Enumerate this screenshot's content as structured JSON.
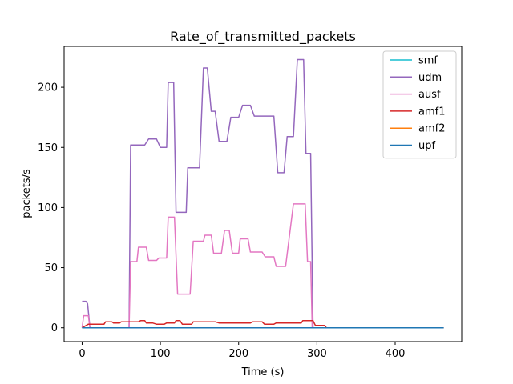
{
  "chart_data": {
    "type": "line",
    "title": "Rate_of_transmitted_packets",
    "xlabel": "Time (s)",
    "ylabel": "packets/s",
    "xlim": [
      -23,
      485
    ],
    "ylim": [
      -11.5,
      234
    ],
    "xticks": [
      0,
      100,
      200,
      300,
      400
    ],
    "yticks": [
      0,
      50,
      100,
      150,
      200
    ],
    "grid": false,
    "legend_position": "top-right",
    "series": [
      {
        "name": "smf",
        "color": "#17becf",
        "x": [
          0,
          462
        ],
        "y": [
          0,
          0
        ]
      },
      {
        "name": "udm",
        "color": "#9467bd",
        "x": [
          0,
          5,
          7,
          10,
          60,
          62,
          65,
          80,
          85,
          95,
          100,
          108,
          110,
          117,
          120,
          133,
          135,
          150,
          155,
          160,
          165,
          170,
          175,
          185,
          190,
          200,
          205,
          215,
          220,
          230,
          235,
          245,
          250,
          258,
          262,
          270,
          275,
          283,
          286,
          292,
          295,
          300,
          462
        ],
        "y": [
          22,
          22,
          20,
          0,
          0,
          152,
          152,
          152,
          157,
          157,
          150,
          150,
          204,
          204,
          96,
          96,
          133,
          133,
          216,
          216,
          180,
          180,
          155,
          155,
          175,
          175,
          185,
          185,
          176,
          176,
          176,
          176,
          129,
          129,
          159,
          159,
          223,
          223,
          145,
          145,
          0,
          0,
          0
        ]
      },
      {
        "name": "ausf",
        "color": "#e377c2",
        "x": [
          0,
          2,
          8,
          10,
          60,
          62,
          70,
          72,
          82,
          85,
          95,
          98,
          108,
          110,
          118,
          122,
          138,
          142,
          155,
          157,
          165,
          168,
          178,
          182,
          188,
          192,
          200,
          202,
          212,
          215,
          230,
          234,
          245,
          248,
          255,
          260,
          270,
          275,
          285,
          288,
          292,
          294,
          300,
          462
        ],
        "y": [
          0,
          10,
          10,
          0,
          0,
          55,
          55,
          67,
          67,
          56,
          56,
          58,
          58,
          92,
          92,
          28,
          28,
          72,
          72,
          77,
          77,
          62,
          62,
          81,
          81,
          62,
          62,
          74,
          74,
          63,
          63,
          59,
          59,
          51,
          51,
          51,
          103,
          103,
          103,
          55,
          55,
          0,
          0,
          0
        ]
      },
      {
        "name": "amf1",
        "color": "#d62728",
        "x": [
          0,
          8,
          28,
          30,
          38,
          40,
          48,
          50,
          60,
          62,
          72,
          75,
          80,
          82,
          90,
          95,
          105,
          108,
          118,
          120,
          125,
          128,
          140,
          142,
          158,
          160,
          170,
          175,
          185,
          190,
          215,
          218,
          230,
          233,
          245,
          248,
          265,
          268,
          280,
          282,
          295,
          298,
          310,
          312,
          462
        ],
        "y": [
          0,
          3,
          3,
          5,
          5,
          4,
          4,
          5,
          5,
          5,
          5,
          6,
          6,
          4,
          4,
          3,
          3,
          4,
          4,
          6,
          6,
          3,
          3,
          5,
          5,
          5,
          5,
          4,
          4,
          4,
          4,
          5,
          5,
          3,
          3,
          4,
          4,
          4,
          4,
          6,
          6,
          2,
          2,
          0,
          0
        ]
      },
      {
        "name": "amf2",
        "color": "#ff7f0e",
        "x": [
          0,
          462
        ],
        "y": [
          0,
          0
        ]
      },
      {
        "name": "upf",
        "color": "#1f77b4",
        "x": [
          0,
          462
        ],
        "y": [
          0,
          0
        ]
      }
    ]
  }
}
